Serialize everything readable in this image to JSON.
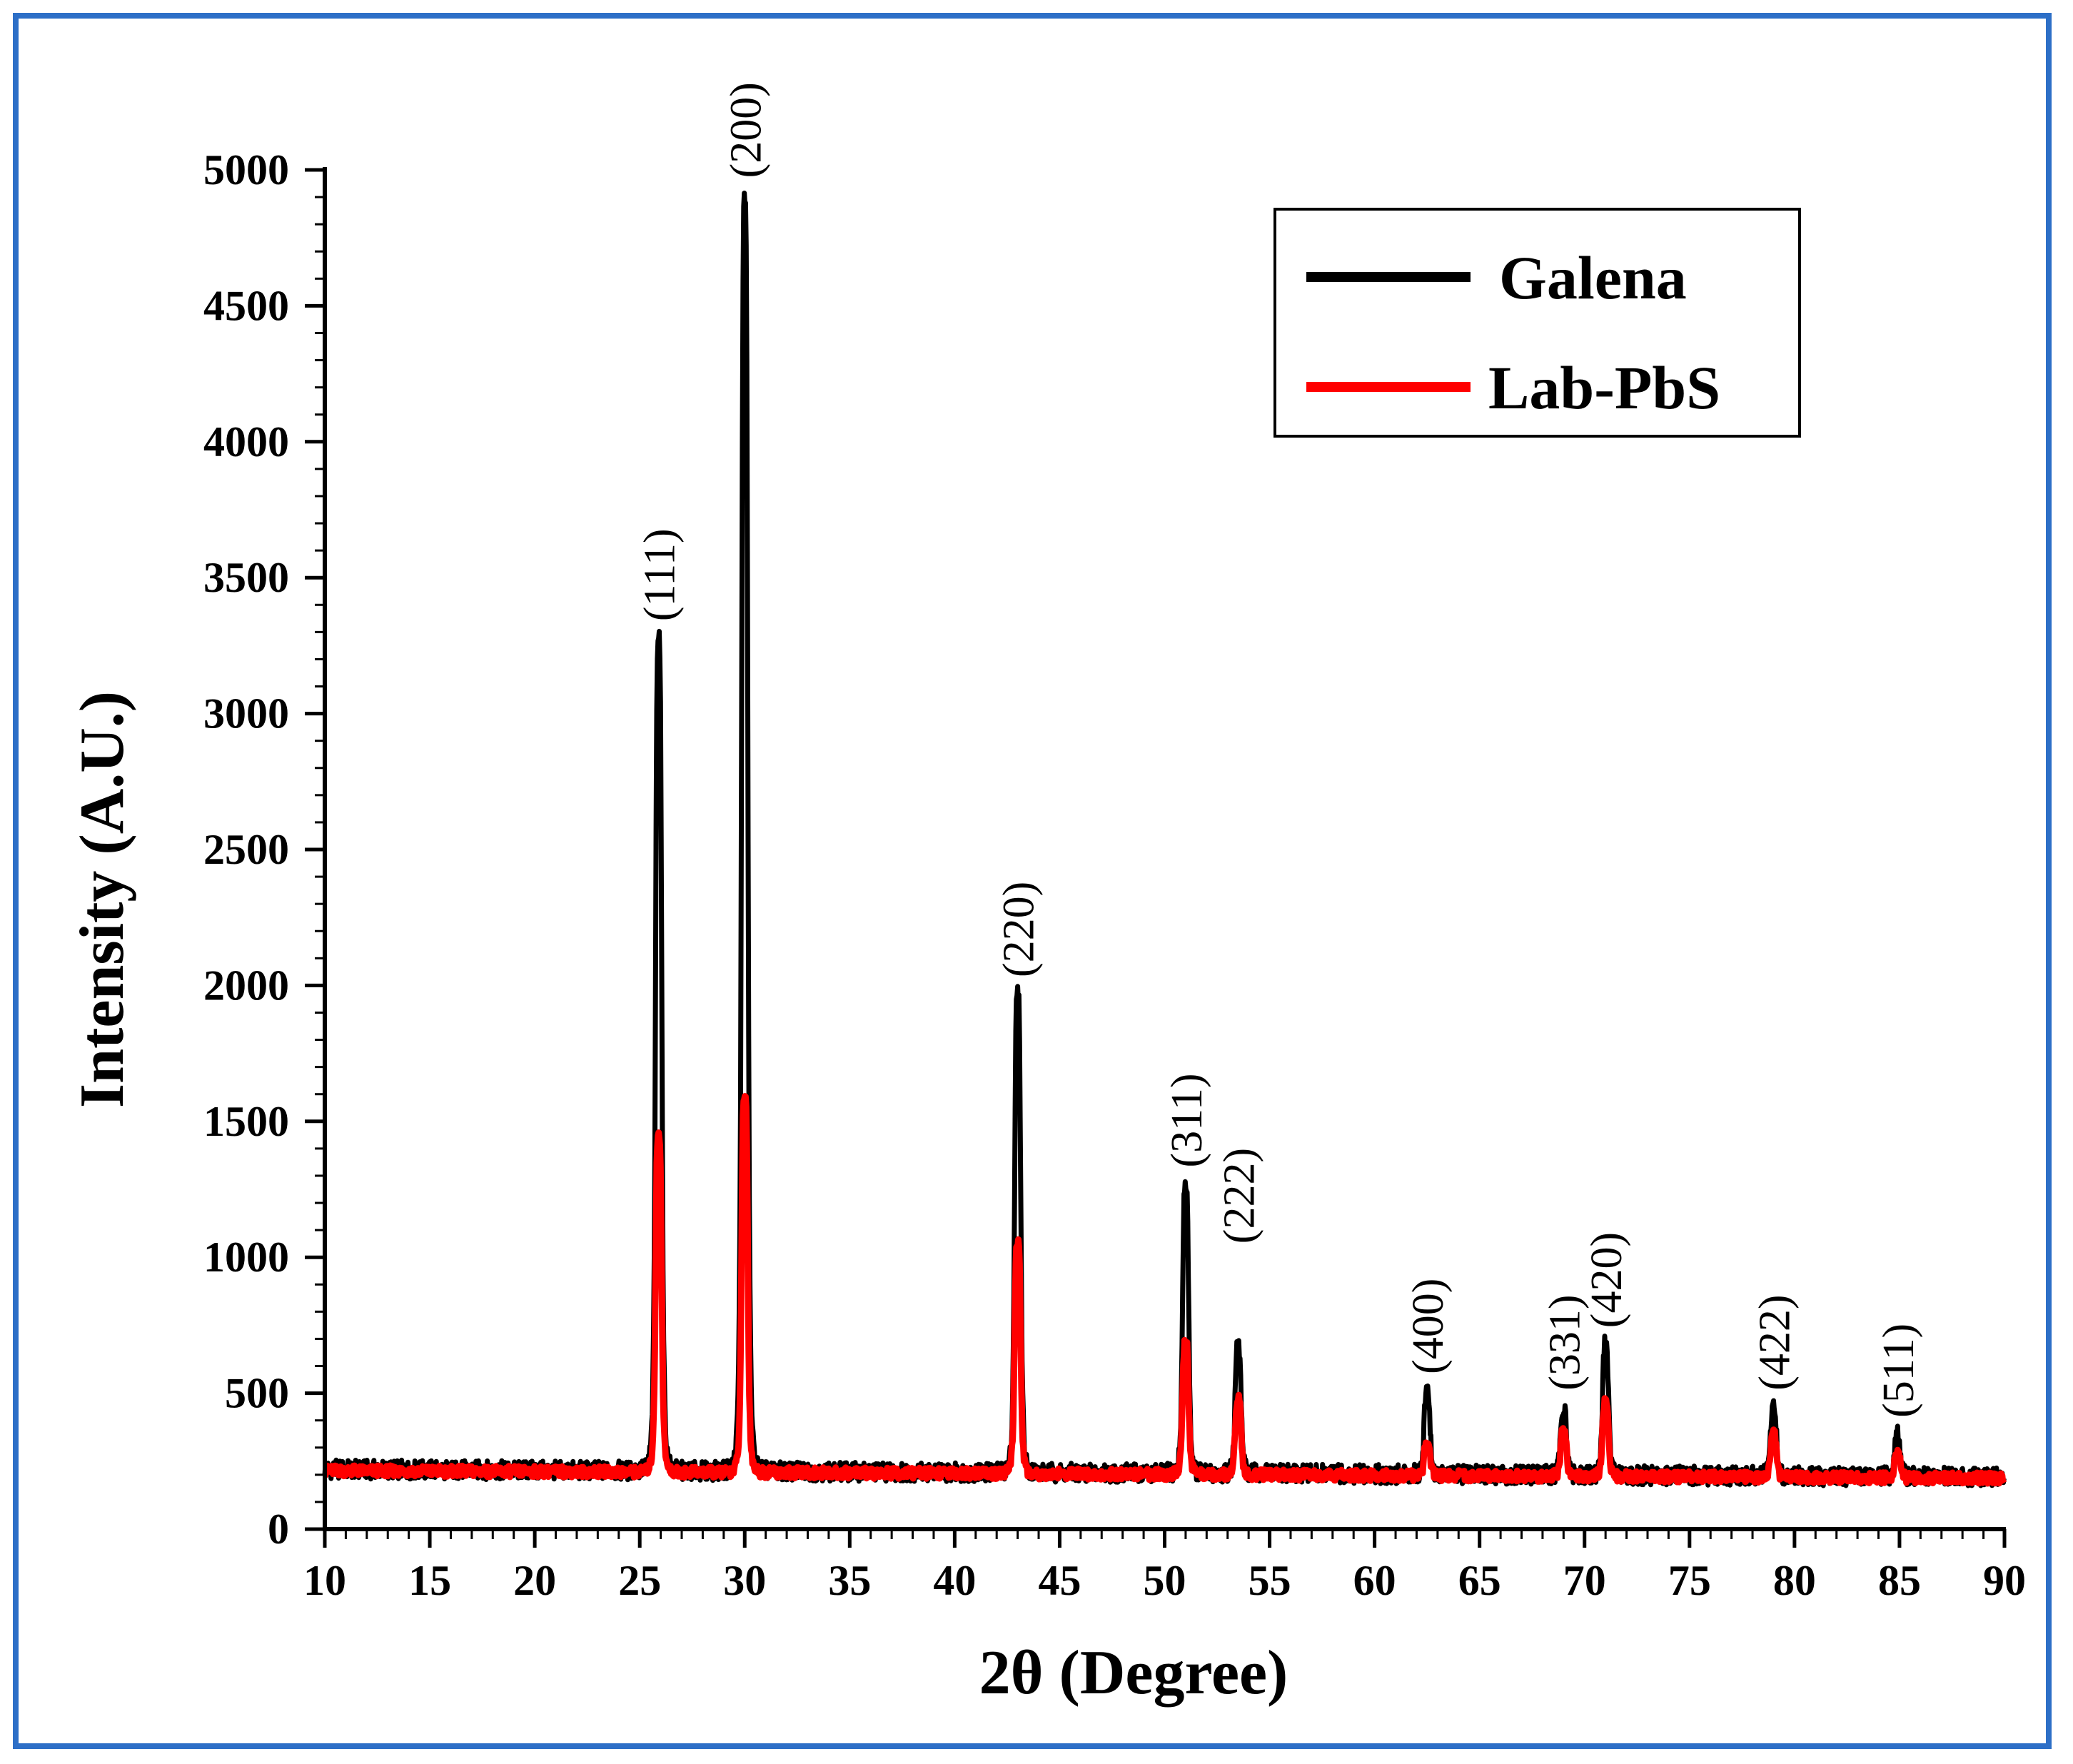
{
  "chart_data": {
    "type": "line",
    "xlabel": "2θ (Degree)",
    "ylabel": "Intensity (A.U.)",
    "xlim": [
      10,
      90
    ],
    "ylim": [
      0,
      5000
    ],
    "x_ticks": [
      "10",
      "15",
      "20",
      "25",
      "30",
      "35",
      "40",
      "45",
      "50",
      "55",
      "60",
      "65",
      "70",
      "75",
      "80",
      "85",
      "90"
    ],
    "y_ticks": [
      "0",
      "500",
      "1000",
      "1500",
      "2000",
      "2500",
      "3000",
      "3500",
      "4000",
      "4500",
      "5000"
    ],
    "legend_position": "top-right",
    "legend": [
      {
        "name": "Galena",
        "color": "#000000"
      },
      {
        "name": "Lab-PbS",
        "color": "#ff0000"
      }
    ],
    "series": [
      {
        "name": "Galena",
        "color": "#000000",
        "baseline": 220,
        "peaks": [
          {
            "x": 25.9,
            "y": 3300
          },
          {
            "x": 30.0,
            "y": 4900
          },
          {
            "x": 43.0,
            "y": 1980
          },
          {
            "x": 51.0,
            "y": 1280
          },
          {
            "x": 53.5,
            "y": 680
          },
          {
            "x": 62.5,
            "y": 530
          },
          {
            "x": 69.0,
            "y": 470
          },
          {
            "x": 71.0,
            "y": 700
          },
          {
            "x": 79.0,
            "y": 470
          },
          {
            "x": 84.9,
            "y": 370
          }
        ]
      },
      {
        "name": "Lab-PbS",
        "color": "#ff0000",
        "baseline": 215,
        "peaks": [
          {
            "x": 25.9,
            "y": 1450
          },
          {
            "x": 30.0,
            "y": 1600
          },
          {
            "x": 43.0,
            "y": 1060
          },
          {
            "x": 51.0,
            "y": 700
          },
          {
            "x": 53.5,
            "y": 490
          },
          {
            "x": 62.5,
            "y": 330
          },
          {
            "x": 69.0,
            "y": 380
          },
          {
            "x": 71.0,
            "y": 490
          },
          {
            "x": 79.0,
            "y": 370
          },
          {
            "x": 84.9,
            "y": 300
          }
        ]
      }
    ],
    "annotations": [
      {
        "text": "(111)",
        "x": 25.9,
        "y": 3340
      },
      {
        "text": "(200)",
        "x": 30.0,
        "y": 4970
      },
      {
        "text": "(220)",
        "x": 43.0,
        "y": 2030
      },
      {
        "text": "(311)",
        "x": 51.0,
        "y": 1330
      },
      {
        "text": "(222)",
        "x": 53.5,
        "y": 1050
      },
      {
        "text": "(400)",
        "x": 62.5,
        "y": 570
      },
      {
        "text": "(331)",
        "x": 69.0,
        "y": 510
      },
      {
        "text": "(420)",
        "x": 71.0,
        "y": 740
      },
      {
        "text": "(422)",
        "x": 79.0,
        "y": 510
      },
      {
        "text": "(511)",
        "x": 84.9,
        "y": 410
      }
    ]
  }
}
